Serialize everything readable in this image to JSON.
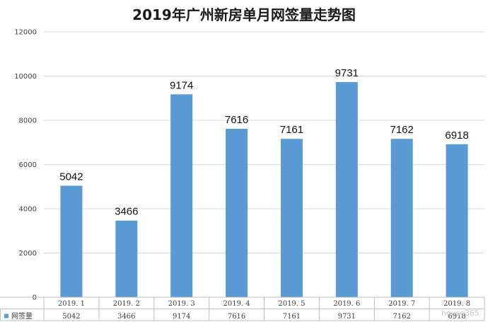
{
  "chart_data": {
    "type": "bar",
    "title": "2019年广州新房单月网签量走势图",
    "categories": [
      "2019.1",
      "2019.2",
      "2019.3",
      "2019.4",
      "2019.5",
      "2019.6",
      "2019.7",
      "2019.8"
    ],
    "category_labels": [
      "2019. 1",
      "2019. 2",
      "2019. 3",
      "2019. 4",
      "2019. 5",
      "2019. 6",
      "2019. 7",
      "2019. 8"
    ],
    "series": [
      {
        "name": "网签量",
        "values": [
          5042,
          3466,
          9174,
          7616,
          7161,
          9731,
          7162,
          6918
        ],
        "color": "#5b9bd5"
      }
    ],
    "ylim": [
      0,
      12000
    ],
    "yticks": [
      0,
      2000,
      4000,
      6000,
      8000,
      10000,
      12000
    ],
    "grid": true,
    "legend": "data-table-left",
    "data_labels": true
  },
  "watermark": {
    "text": "house365"
  }
}
